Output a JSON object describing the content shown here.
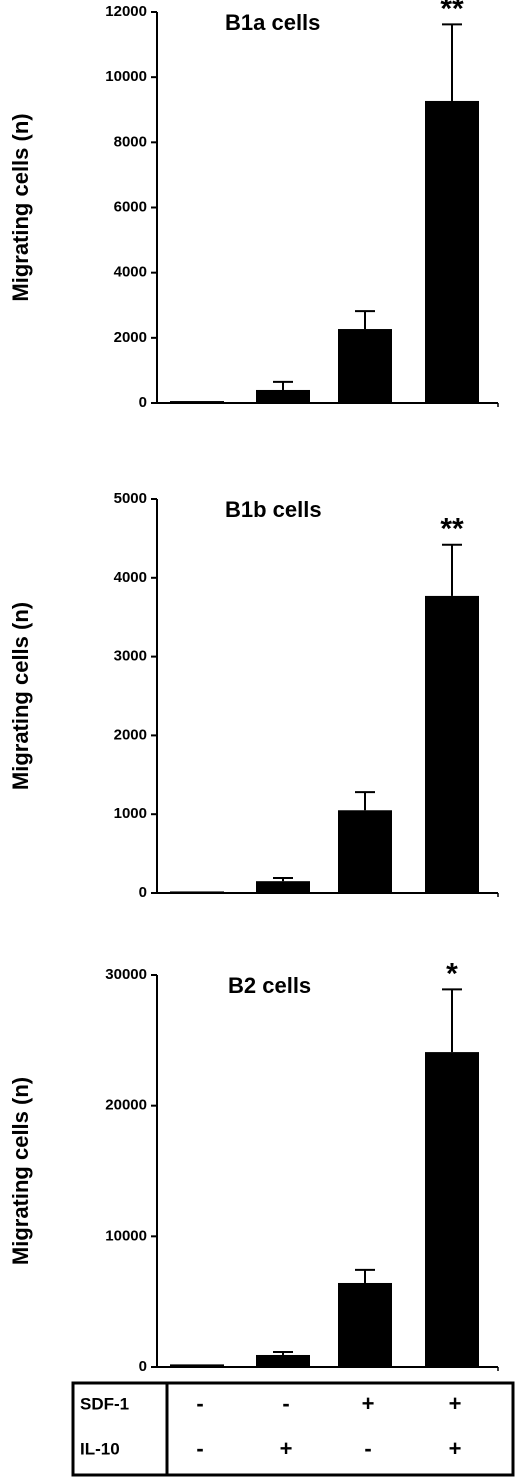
{
  "chart_data": [
    {
      "type": "bar",
      "title": "B1a cells",
      "y_label": "Migrating cells (n)",
      "categories": [
        null,
        null,
        null,
        null
      ],
      "series": [
        {
          "color": "#000000",
          "values": [
            60,
            400,
            2270,
            9270
          ],
          "errors": [
            0,
            250,
            550,
            2350
          ],
          "value_annotations": [
            null,
            null,
            null,
            "**"
          ]
        }
      ],
      "ylim": [
        0,
        12000
      ],
      "yticks": [
        0,
        2000,
        4000,
        6000,
        8000,
        10000,
        12000
      ]
    },
    {
      "type": "bar",
      "title": "B1b cells",
      "y_label": "Migrating cells (n)",
      "categories": [
        null,
        null,
        null,
        null
      ],
      "series": [
        {
          "color": "#000000",
          "values": [
            20,
            150,
            1050,
            3770
          ],
          "errors": [
            0,
            40,
            230,
            650
          ],
          "value_annotations": [
            null,
            null,
            null,
            "**"
          ]
        }
      ],
      "ylim": [
        0,
        5000
      ],
      "yticks": [
        0,
        1000,
        2000,
        3000,
        4000,
        5000
      ]
    },
    {
      "type": "bar",
      "title": "B2 cells",
      "y_label": "Migrating cells (n)",
      "categories": [
        null,
        null,
        null,
        null
      ],
      "series": [
        {
          "color": "#000000",
          "values": [
            200,
            920,
            6430,
            24100
          ],
          "errors": [
            0,
            230,
            1000,
            4800
          ],
          "value_annotations": [
            null,
            null,
            null,
            "*"
          ]
        }
      ],
      "ylim": [
        0,
        30000
      ],
      "yticks": [
        0,
        10000,
        20000,
        30000
      ]
    }
  ],
  "conditions": {
    "rows": [
      {
        "label": "SDF-1",
        "cells": [
          "-",
          "-",
          "+",
          "+"
        ]
      },
      {
        "label": "IL-10",
        "cells": [
          "-",
          "+",
          "-",
          "+"
        ]
      }
    ]
  }
}
